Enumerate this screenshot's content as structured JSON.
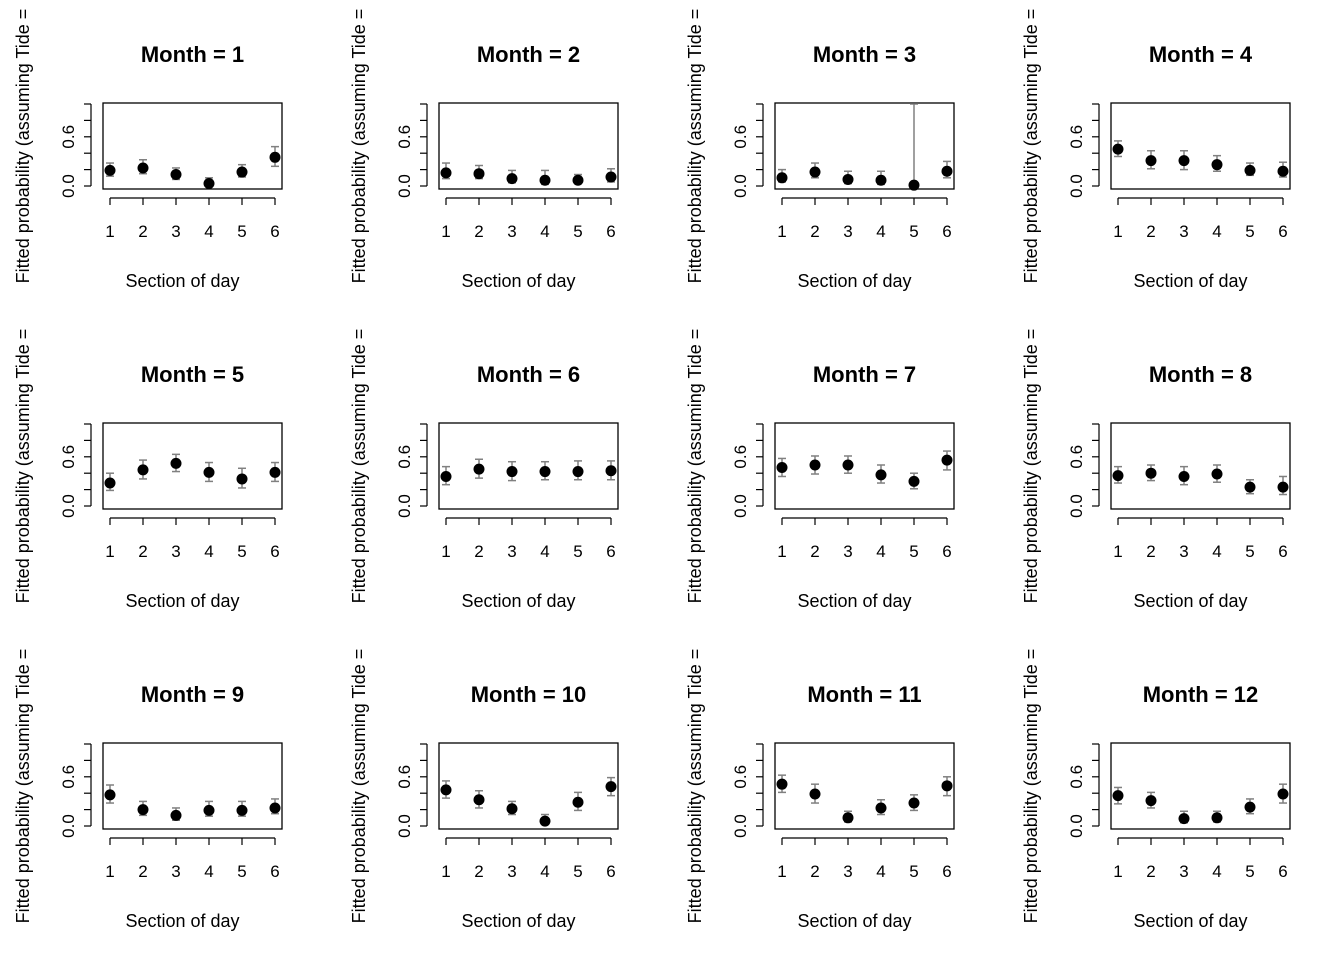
{
  "chart_data": [
    {
      "type": "scatter",
      "title": "Month = 1",
      "xlabel": "Section of day",
      "ylabel": "Fitted probability (assuming Tide =",
      "x": [
        1,
        2,
        3,
        4,
        5,
        6
      ],
      "x_tick_labels": [
        "1",
        "2",
        "3",
        "4",
        "5",
        "6"
      ],
      "y_tick_labels": [
        "0.0",
        "0.6"
      ],
      "ylim": [
        0,
        1
      ],
      "series": [
        {
          "values": [
            0.19,
            0.22,
            0.14,
            0.03,
            0.17,
            0.35
          ],
          "lower": [
            0.12,
            0.15,
            0.08,
            0.01,
            0.11,
            0.24
          ],
          "upper": [
            0.28,
            0.32,
            0.22,
            0.1,
            0.26,
            0.48
          ]
        }
      ]
    },
    {
      "type": "scatter",
      "title": "Month = 2",
      "xlabel": "Section of day",
      "ylabel": "Fitted probability (assuming Tide =",
      "x": [
        1,
        2,
        3,
        4,
        5,
        6
      ],
      "x_tick_labels": [
        "1",
        "2",
        "3",
        "4",
        "5",
        "6"
      ],
      "y_tick_labels": [
        "0.0",
        "0.6"
      ],
      "ylim": [
        0,
        1
      ],
      "series": [
        {
          "values": [
            0.16,
            0.15,
            0.09,
            0.07,
            0.07,
            0.11
          ],
          "lower": [
            0.09,
            0.09,
            0.04,
            0.02,
            0.03,
            0.05
          ],
          "upper": [
            0.28,
            0.25,
            0.19,
            0.19,
            0.14,
            0.21
          ]
        }
      ]
    },
    {
      "type": "scatter",
      "title": "Month = 3",
      "xlabel": "Section of day",
      "ylabel": "Fitted probability (assuming Tide =",
      "x": [
        1,
        2,
        3,
        4,
        5,
        6
      ],
      "x_tick_labels": [
        "1",
        "2",
        "3",
        "4",
        "5",
        "6"
      ],
      "y_tick_labels": [
        "0.0",
        "0.6"
      ],
      "ylim": [
        0,
        1
      ],
      "series": [
        {
          "values": [
            0.1,
            0.17,
            0.08,
            0.07,
            0.01,
            0.18
          ],
          "lower": [
            0.05,
            0.1,
            0.03,
            0.02,
            0.0,
            0.1
          ],
          "upper": [
            0.2,
            0.28,
            0.18,
            0.18,
            1.0,
            0.3
          ]
        }
      ]
    },
    {
      "type": "scatter",
      "title": "Month = 4",
      "xlabel": "Section of day",
      "ylabel": "Fitted probability (assuming Tide =",
      "x": [
        1,
        2,
        3,
        4,
        5,
        6
      ],
      "x_tick_labels": [
        "1",
        "2",
        "3",
        "4",
        "5",
        "6"
      ],
      "y_tick_labels": [
        "0.0",
        "0.6"
      ],
      "ylim": [
        0,
        1
      ],
      "series": [
        {
          "values": [
            0.45,
            0.31,
            0.31,
            0.26,
            0.19,
            0.18
          ],
          "lower": [
            0.36,
            0.21,
            0.2,
            0.18,
            0.13,
            0.11
          ],
          "upper": [
            0.55,
            0.43,
            0.43,
            0.37,
            0.28,
            0.29
          ]
        }
      ]
    },
    {
      "type": "scatter",
      "title": "Month = 5",
      "xlabel": "Section of day",
      "ylabel": "Fitted probability (assuming Tide =",
      "x": [
        1,
        2,
        3,
        4,
        5,
        6
      ],
      "x_tick_labels": [
        "1",
        "2",
        "3",
        "4",
        "5",
        "6"
      ],
      "y_tick_labels": [
        "0.0",
        "0.6"
      ],
      "ylim": [
        0,
        1
      ],
      "series": [
        {
          "values": [
            0.28,
            0.44,
            0.52,
            0.41,
            0.33,
            0.41
          ],
          "lower": [
            0.19,
            0.33,
            0.42,
            0.3,
            0.22,
            0.3
          ],
          "upper": [
            0.4,
            0.56,
            0.63,
            0.53,
            0.46,
            0.53
          ]
        }
      ]
    },
    {
      "type": "scatter",
      "title": "Month = 6",
      "xlabel": "Section of day",
      "ylabel": "Fitted probability (assuming Tide =",
      "x": [
        1,
        2,
        3,
        4,
        5,
        6
      ],
      "x_tick_labels": [
        "1",
        "2",
        "3",
        "4",
        "5",
        "6"
      ],
      "y_tick_labels": [
        "0.0",
        "0.6"
      ],
      "ylim": [
        0,
        1
      ],
      "series": [
        {
          "values": [
            0.36,
            0.45,
            0.42,
            0.42,
            0.42,
            0.43
          ],
          "lower": [
            0.26,
            0.34,
            0.31,
            0.32,
            0.32,
            0.32
          ],
          "upper": [
            0.48,
            0.57,
            0.54,
            0.54,
            0.55,
            0.55
          ]
        }
      ]
    },
    {
      "type": "scatter",
      "title": "Month = 7",
      "xlabel": "Section of day",
      "ylabel": "Fitted probability (assuming Tide =",
      "x": [
        1,
        2,
        3,
        4,
        5,
        6
      ],
      "x_tick_labels": [
        "1",
        "2",
        "3",
        "4",
        "5",
        "6"
      ],
      "y_tick_labels": [
        "0.0",
        "0.6"
      ],
      "ylim": [
        0,
        1
      ],
      "series": [
        {
          "values": [
            0.47,
            0.5,
            0.5,
            0.38,
            0.3,
            0.56
          ],
          "lower": [
            0.36,
            0.39,
            0.4,
            0.28,
            0.21,
            0.44
          ],
          "upper": [
            0.58,
            0.61,
            0.61,
            0.5,
            0.4,
            0.67
          ]
        }
      ]
    },
    {
      "type": "scatter",
      "title": "Month = 8",
      "xlabel": "Section of day",
      "ylabel": "Fitted probability (assuming Tide =",
      "x": [
        1,
        2,
        3,
        4,
        5,
        6
      ],
      "x_tick_labels": [
        "1",
        "2",
        "3",
        "4",
        "5",
        "6"
      ],
      "y_tick_labels": [
        "0.0",
        "0.6"
      ],
      "ylim": [
        0,
        1
      ],
      "series": [
        {
          "values": [
            0.37,
            0.4,
            0.36,
            0.39,
            0.23,
            0.23
          ],
          "lower": [
            0.28,
            0.31,
            0.26,
            0.29,
            0.15,
            0.14
          ],
          "upper": [
            0.48,
            0.5,
            0.48,
            0.5,
            0.32,
            0.36
          ]
        }
      ]
    },
    {
      "type": "scatter",
      "title": "Month = 9",
      "xlabel": "Section of day",
      "ylabel": "Fitted probability (assuming Tide =",
      "x": [
        1,
        2,
        3,
        4,
        5,
        6
      ],
      "x_tick_labels": [
        "1",
        "2",
        "3",
        "4",
        "5",
        "6"
      ],
      "y_tick_labels": [
        "0.0",
        "0.6"
      ],
      "ylim": [
        0,
        1
      ],
      "series": [
        {
          "values": [
            0.38,
            0.2,
            0.13,
            0.19,
            0.19,
            0.22
          ],
          "lower": [
            0.28,
            0.13,
            0.07,
            0.12,
            0.12,
            0.15
          ],
          "upper": [
            0.5,
            0.3,
            0.22,
            0.3,
            0.3,
            0.33
          ]
        }
      ]
    },
    {
      "type": "scatter",
      "title": "Month = 10",
      "xlabel": "Section of day",
      "ylabel": "Fitted probability (assuming Tide =",
      "x": [
        1,
        2,
        3,
        4,
        5,
        6
      ],
      "x_tick_labels": [
        "1",
        "2",
        "3",
        "4",
        "5",
        "6"
      ],
      "y_tick_labels": [
        "0.0",
        "0.6"
      ],
      "ylim": [
        0,
        1
      ],
      "series": [
        {
          "values": [
            0.44,
            0.32,
            0.21,
            0.06,
            0.29,
            0.48
          ],
          "lower": [
            0.34,
            0.22,
            0.14,
            0.02,
            0.19,
            0.37
          ],
          "upper": [
            0.55,
            0.43,
            0.3,
            0.14,
            0.41,
            0.59
          ]
        }
      ]
    },
    {
      "type": "scatter",
      "title": "Month = 11",
      "xlabel": "Section of day",
      "ylabel": "Fitted probability (assuming Tide =",
      "x": [
        1,
        2,
        3,
        4,
        5,
        6
      ],
      "x_tick_labels": [
        "1",
        "2",
        "3",
        "4",
        "5",
        "6"
      ],
      "y_tick_labels": [
        "0.0",
        "0.6"
      ],
      "ylim": [
        0,
        1
      ],
      "series": [
        {
          "values": [
            0.51,
            0.39,
            0.1,
            0.22,
            0.28,
            0.49
          ],
          "lower": [
            0.41,
            0.28,
            0.05,
            0.14,
            0.19,
            0.37
          ],
          "upper": [
            0.62,
            0.51,
            0.18,
            0.32,
            0.38,
            0.6
          ]
        }
      ]
    },
    {
      "type": "scatter",
      "title": "Month = 12",
      "xlabel": "Section of day",
      "ylabel": "Fitted probability (assuming Tide =",
      "x": [
        1,
        2,
        3,
        4,
        5,
        6
      ],
      "x_tick_labels": [
        "1",
        "2",
        "3",
        "4",
        "5",
        "6"
      ],
      "y_tick_labels": [
        "0.0",
        "0.6"
      ],
      "ylim": [
        0,
        1
      ],
      "series": [
        {
          "values": [
            0.37,
            0.31,
            0.09,
            0.1,
            0.23,
            0.39
          ],
          "lower": [
            0.27,
            0.22,
            0.04,
            0.05,
            0.15,
            0.28
          ],
          "upper": [
            0.47,
            0.41,
            0.18,
            0.18,
            0.33,
            0.51
          ]
        }
      ]
    }
  ]
}
